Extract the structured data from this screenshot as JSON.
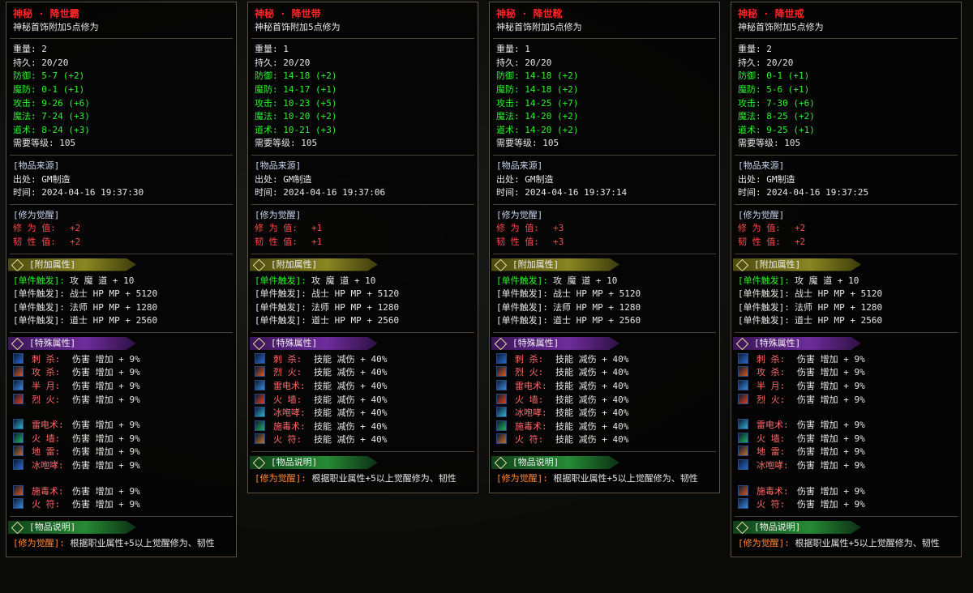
{
  "panels": [
    {
      "title": "神秘 · 降世霸",
      "subtitle": "神秘首饰附加5点修为",
      "basic": [
        "重量: 2",
        "持久: 20/20"
      ],
      "bonus": [
        "防御: 5-7 (+2)",
        "魔防: 0-1 (+1)",
        "攻击: 9-26 (+6)",
        "魔法: 7-24 (+3)",
        "道术: 8-24 (+3)"
      ],
      "requirement": "需要等级: 105",
      "source": {
        "header": "[物品来源]",
        "origin": "出处: GM制造",
        "time": "时间: 2024-04-16 19:37:30"
      },
      "awakening": {
        "header": "[修为觉醒]",
        "lines": [
          {
            "label": "修 为 值:",
            "value": "+2"
          },
          {
            "label": "韧 性 值:",
            "value": "+2"
          }
        ]
      },
      "attached": {
        "header": "[附加属性]",
        "lines": [
          {
            "label": "[单件触发]:",
            "value": "攻 魔 道 + 10"
          },
          {
            "label": "[单件触发]:",
            "value": "战士 HP MP + 5120"
          },
          {
            "label": "[单件触发]:",
            "value": "法师 HP MP + 1280"
          },
          {
            "label": "[单件触发]:",
            "value": "道士 HP MP + 2560"
          }
        ]
      },
      "special": {
        "header": "[特殊属性]",
        "groups": [
          [
            {
              "skill": "刺 杀:",
              "effect": "伤害 增加 + 9%"
            },
            {
              "skill": "攻 杀:",
              "effect": "伤害 增加 + 9%"
            },
            {
              "skill": "半 月:",
              "effect": "伤害 增加 + 9%"
            },
            {
              "skill": "烈 火:",
              "effect": "伤害 增加 + 9%"
            }
          ],
          [
            {
              "skill": "雷电术:",
              "effect": "伤害 增加 + 9%"
            },
            {
              "skill": "火 墙:",
              "effect": "伤害 增加 + 9%"
            },
            {
              "skill": "地 雷:",
              "effect": "伤害 增加 + 9%"
            },
            {
              "skill": "冰咆哮:",
              "effect": "伤害 增加 + 9%"
            }
          ],
          [
            {
              "skill": "施毒术:",
              "effect": "伤害 增加 + 9%"
            },
            {
              "skill": "火 符:",
              "effect": "伤害 增加 + 9%"
            }
          ]
        ]
      },
      "description": {
        "header": "[物品说明]",
        "tag": "[修为觉醒]:",
        "text": "根据职业属性+5以上觉醒修为、韧性"
      }
    },
    {
      "title": "神秘 · 降世带",
      "subtitle": "神秘首饰附加5点修为",
      "basic": [
        "重量: 1",
        "持久: 20/20"
      ],
      "bonus": [
        "防御: 14-18 (+2)",
        "魔防: 14-17 (+1)",
        "攻击: 10-23 (+5)",
        "魔法: 10-20 (+2)",
        "道术: 10-21 (+3)"
      ],
      "requirement": "需要等级: 105",
      "source": {
        "header": "[物品来源]",
        "origin": "出处: GM制造",
        "time": "时间: 2024-04-16 19:37:06"
      },
      "awakening": {
        "header": "[修为觉醒]",
        "lines": [
          {
            "label": "修 为 值:",
            "value": "+1"
          },
          {
            "label": "韧 性 值:",
            "value": "+1"
          }
        ]
      },
      "attached": {
        "header": "[附加属性]",
        "lines": [
          {
            "label": "[单件触发]:",
            "value": "攻 魔 道 + 10"
          },
          {
            "label": "[单件触发]:",
            "value": "战士 HP MP + 5120"
          },
          {
            "label": "[单件触发]:",
            "value": "法师 HP MP + 1280"
          },
          {
            "label": "[单件触发]:",
            "value": "道士 HP MP + 2560"
          }
        ]
      },
      "special": {
        "header": "[特殊属性]",
        "groups": [
          [
            {
              "skill": "刺 杀:",
              "effect": "技能 减伤 + 40%"
            },
            {
              "skill": "烈 火:",
              "effect": "技能 减伤 + 40%"
            },
            {
              "skill": "雷电术:",
              "effect": "技能 减伤 + 40%"
            },
            {
              "skill": "火 墙:",
              "effect": "技能 减伤 + 40%"
            },
            {
              "skill": "冰咆哮:",
              "effect": "技能 减伤 + 40%"
            },
            {
              "skill": "施毒术:",
              "effect": "技能 减伤 + 40%"
            },
            {
              "skill": "火 符:",
              "effect": "技能 减伤 + 40%"
            }
          ]
        ]
      },
      "description": {
        "header": "[物品说明]",
        "tag": "[修为觉醒]:",
        "text": "根据职业属性+5以上觉醒修为、韧性"
      }
    },
    {
      "title": "神秘 · 降世靴",
      "subtitle": "神秘首饰附加5点修为",
      "basic": [
        "重量: 1",
        "持久: 20/20"
      ],
      "bonus": [
        "防御: 14-18 (+2)",
        "魔防: 14-18 (+2)",
        "攻击: 14-25 (+7)",
        "魔法: 14-20 (+2)",
        "道术: 14-20 (+2)"
      ],
      "requirement": "需要等级: 105",
      "source": {
        "header": "[物品来源]",
        "origin": "出处: GM制造",
        "time": "时间: 2024-04-16 19:37:14"
      },
      "awakening": {
        "header": "[修为觉醒]",
        "lines": [
          {
            "label": "修 为 值:",
            "value": "+3"
          },
          {
            "label": "韧 性 值:",
            "value": "+3"
          }
        ]
      },
      "attached": {
        "header": "[附加属性]",
        "lines": [
          {
            "label": "[单件触发]:",
            "value": "攻 魔 道 + 10"
          },
          {
            "label": "[单件触发]:",
            "value": "战士 HP MP + 5120"
          },
          {
            "label": "[单件触发]:",
            "value": "法师 HP MP + 1280"
          },
          {
            "label": "[单件触发]:",
            "value": "道士 HP MP + 2560"
          }
        ]
      },
      "special": {
        "header": "[特殊属性]",
        "groups": [
          [
            {
              "skill": "刺 杀:",
              "effect": "技能 减伤 + 40%"
            },
            {
              "skill": "烈 火:",
              "effect": "技能 减伤 + 40%"
            },
            {
              "skill": "雷电术:",
              "effect": "技能 减伤 + 40%"
            },
            {
              "skill": "火 墙:",
              "effect": "技能 减伤 + 40%"
            },
            {
              "skill": "冰咆哮:",
              "effect": "技能 减伤 + 40%"
            },
            {
              "skill": "施毒术:",
              "effect": "技能 减伤 + 40%"
            },
            {
              "skill": "火 符:",
              "effect": "技能 减伤 + 40%"
            }
          ]
        ]
      },
      "description": {
        "header": "[物品说明]",
        "tag": "[修为觉醒]:",
        "text": "根据职业属性+5以上觉醒修为、韧性"
      }
    },
    {
      "title": "神秘 · 降世戒",
      "subtitle": "神秘首饰附加5点修为",
      "basic": [
        "重量: 2",
        "持久: 20/20"
      ],
      "bonus": [
        "防御: 0-1 (+1)",
        "魔防: 5-6 (+1)",
        "攻击: 7-30 (+6)",
        "魔法: 8-25 (+2)",
        "道术: 9-25 (+1)"
      ],
      "requirement": "需要等级: 105",
      "source": {
        "header": "[物品来源]",
        "origin": "出处: GM制造",
        "time": "时间: 2024-04-16 19:37:25"
      },
      "awakening": {
        "header": "[修为觉醒]",
        "lines": [
          {
            "label": "修 为 值:",
            "value": "+2"
          },
          {
            "label": "韧 性 值:",
            "value": "+2"
          }
        ]
      },
      "attached": {
        "header": "[附加属性]",
        "lines": [
          {
            "label": "[单件触发]:",
            "value": "攻 魔 道 + 10"
          },
          {
            "label": "[单件触发]:",
            "value": "战士 HP MP + 5120"
          },
          {
            "label": "[单件触发]:",
            "value": "法师 HP MP + 1280"
          },
          {
            "label": "[单件触发]:",
            "value": "道士 HP MP + 2560"
          }
        ]
      },
      "special": {
        "header": "[特殊属性]",
        "groups": [
          [
            {
              "skill": "刺 杀:",
              "effect": "伤害 增加 + 9%"
            },
            {
              "skill": "攻 杀:",
              "effect": "伤害 增加 + 9%"
            },
            {
              "skill": "半 月:",
              "effect": "伤害 增加 + 9%"
            },
            {
              "skill": "烈 火:",
              "effect": "伤害 增加 + 9%"
            }
          ],
          [
            {
              "skill": "雷电术:",
              "effect": "伤害 增加 + 9%"
            },
            {
              "skill": "火 墙:",
              "effect": "伤害 增加 + 9%"
            },
            {
              "skill": "地 雷:",
              "effect": "伤害 增加 + 9%"
            },
            {
              "skill": "冰咆哮:",
              "effect": "伤害 增加 + 9%"
            }
          ],
          [
            {
              "skill": "施毒术:",
              "effect": "伤害 增加 + 9%"
            },
            {
              "skill": "火 符:",
              "effect": "伤害 增加 + 9%"
            }
          ]
        ]
      },
      "description": {
        "header": "[物品说明]",
        "tag": "[修为觉醒]:",
        "text": "根据职业属性+5以上觉醒修为、韧性"
      }
    }
  ]
}
